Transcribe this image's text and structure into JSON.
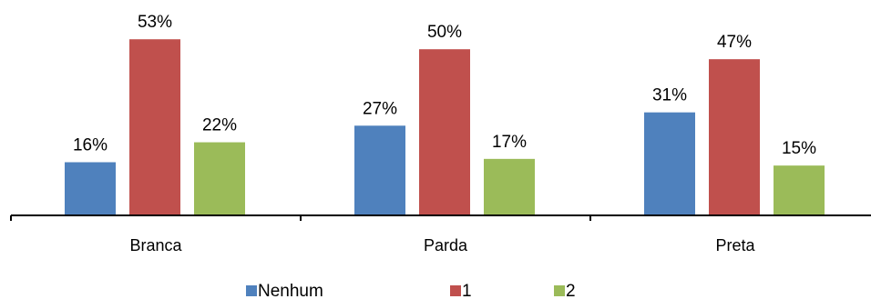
{
  "chart_data": {
    "type": "bar",
    "categories": [
      "Branca",
      "Parda",
      "Preta"
    ],
    "series": [
      {
        "name": "Nenhum",
        "color": "#4f81bd",
        "values": [
          16,
          27,
          31
        ],
        "labels": [
          "16%",
          "27%",
          "31%"
        ]
      },
      {
        "name": "1",
        "color": "#c0504d",
        "values": [
          53,
          50,
          47
        ],
        "labels": [
          "53%",
          "50%",
          "47%"
        ]
      },
      {
        "name": "2",
        "color": "#9bbb59",
        "values": [
          22,
          17,
          15
        ],
        "labels": [
          "22%",
          "17%",
          "15%"
        ]
      }
    ],
    "ylim": [
      0,
      60
    ],
    "unit": "%",
    "grid": false,
    "legend_position": "bottom"
  }
}
